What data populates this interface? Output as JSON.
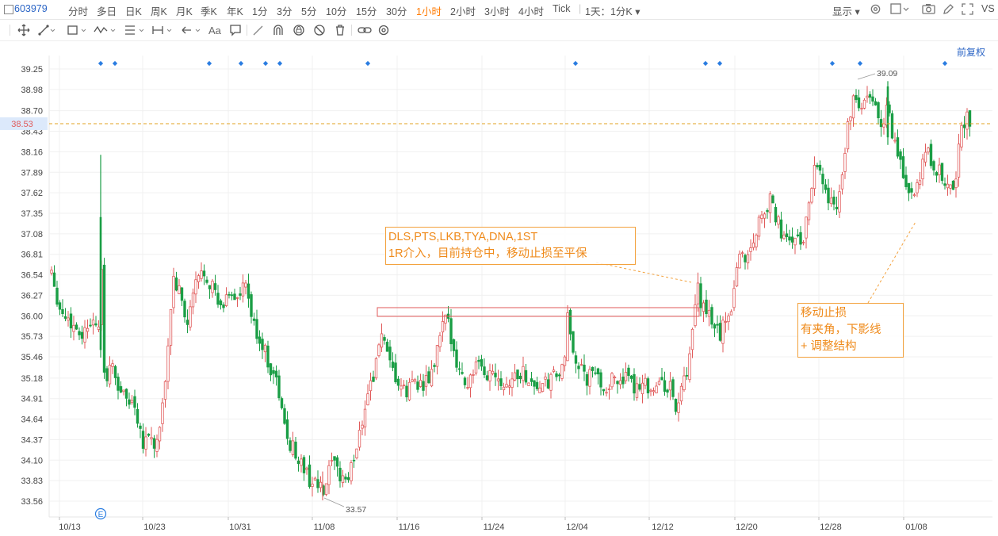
{
  "header": {
    "code": "603979",
    "periods": [
      "分时",
      "多日",
      "日K",
      "周K",
      "月K",
      "季K",
      "年K",
      "1分",
      "3分",
      "5分",
      "10分",
      "15分",
      "30分",
      "1小时",
      "2小时",
      "3小时",
      "4小时",
      "Tick"
    ],
    "active_period": "1小时",
    "range": "1天：1分K",
    "display_label": "显示",
    "vs_label": "VS"
  },
  "toolbar": {
    "font_label": "Aa",
    "icons": [
      "move-icon",
      "line-icon",
      "rect-icon",
      "wave-icon",
      "fib-icon",
      "measure-icon",
      "arrow-icon",
      "text-icon",
      "comment-icon",
      "pen-icon",
      "magnet-icon",
      "lock-icon",
      "hide-icon",
      "trash-icon",
      "link-icon",
      "settings-icon"
    ]
  },
  "adjust_label": "前复权",
  "annotations": {
    "a1_line1": "DLS,PTS,LKB,TYA,DNA,1ST",
    "a1_line2": "1R介入，目前持仓中，移动止损至平保",
    "a2_line1": "移动止损",
    "a2_line2": "有夹角，下影线",
    "a2_line3": "+ 调整结构"
  },
  "chart_data": {
    "type": "candlestick",
    "y_ticks": [
      "39.25",
      "38.98",
      "38.70",
      "38.43",
      "38.16",
      "37.89",
      "37.62",
      "37.35",
      "37.08",
      "36.81",
      "36.54",
      "36.27",
      "36.00",
      "35.73",
      "35.46",
      "35.18",
      "34.91",
      "34.64",
      "34.37",
      "34.10",
      "33.83",
      "33.56"
    ],
    "x_ticks": [
      "10/13",
      "10/23",
      "10/31",
      "11/08",
      "11/16",
      "11/24",
      "12/04",
      "12/12",
      "12/20",
      "12/28",
      "01/08"
    ],
    "current_price": "38.53",
    "high_label": "39.09",
    "low_label": "33.57",
    "event_marker": "E",
    "ylim": [
      33.42,
      39.32
    ],
    "bullish_color": "#e05a5a",
    "bearish_color": "#1a9e45"
  }
}
